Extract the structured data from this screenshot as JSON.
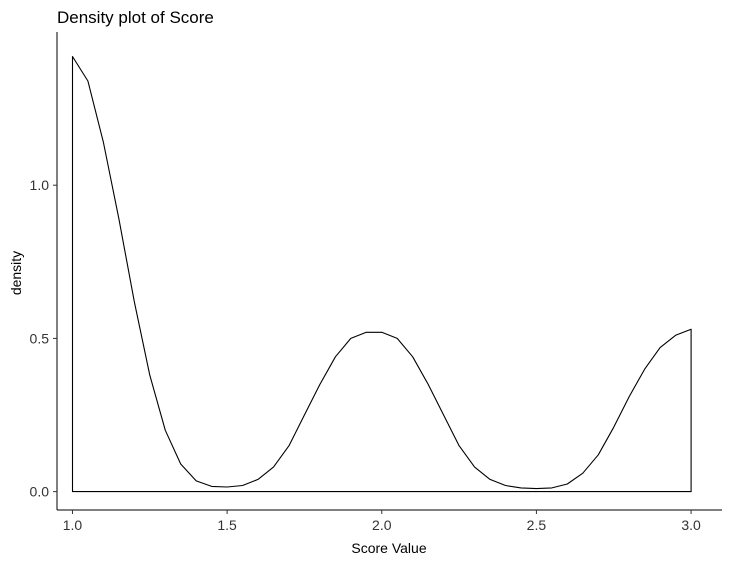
{
  "chart_data": {
    "type": "area",
    "title": "Density plot of Score",
    "xlabel": "Score Value",
    "ylabel": "density",
    "xlim": [
      0.95,
      3.1
    ],
    "ylim": [
      -0.06,
      1.5
    ],
    "x_ticks": [
      1.0,
      1.5,
      2.0,
      2.5,
      3.0
    ],
    "x_tick_labels": [
      "1.0",
      "1.5",
      "2.0",
      "2.5",
      "3.0"
    ],
    "y_ticks": [
      0.0,
      0.5,
      1.0
    ],
    "y_tick_labels": [
      "0.0",
      "0.5",
      "1.0"
    ],
    "grid": false,
    "fill": "none",
    "line_color": "#000000",
    "series": [
      {
        "x": [
          1.0,
          1.05,
          1.1,
          1.15,
          1.2,
          1.25,
          1.3,
          1.35,
          1.4,
          1.45,
          1.5,
          1.55,
          1.6,
          1.65,
          1.7,
          1.75,
          1.8,
          1.85,
          1.9,
          1.95,
          2.0,
          2.05,
          2.1,
          2.15,
          2.2,
          2.25,
          2.3,
          2.35,
          2.4,
          2.45,
          2.5,
          2.55,
          2.6,
          2.65,
          2.7,
          2.75,
          2.8,
          2.85,
          2.9,
          2.95,
          3.0
        ],
        "values": [
          1.42,
          1.34,
          1.14,
          0.89,
          0.62,
          0.38,
          0.2,
          0.09,
          0.035,
          0.017,
          0.015,
          0.02,
          0.04,
          0.08,
          0.15,
          0.25,
          0.35,
          0.44,
          0.5,
          0.52,
          0.52,
          0.5,
          0.44,
          0.35,
          0.25,
          0.15,
          0.08,
          0.04,
          0.02,
          0.012,
          0.01,
          0.012,
          0.025,
          0.06,
          0.12,
          0.21,
          0.31,
          0.4,
          0.47,
          0.51,
          0.53
        ]
      }
    ]
  }
}
